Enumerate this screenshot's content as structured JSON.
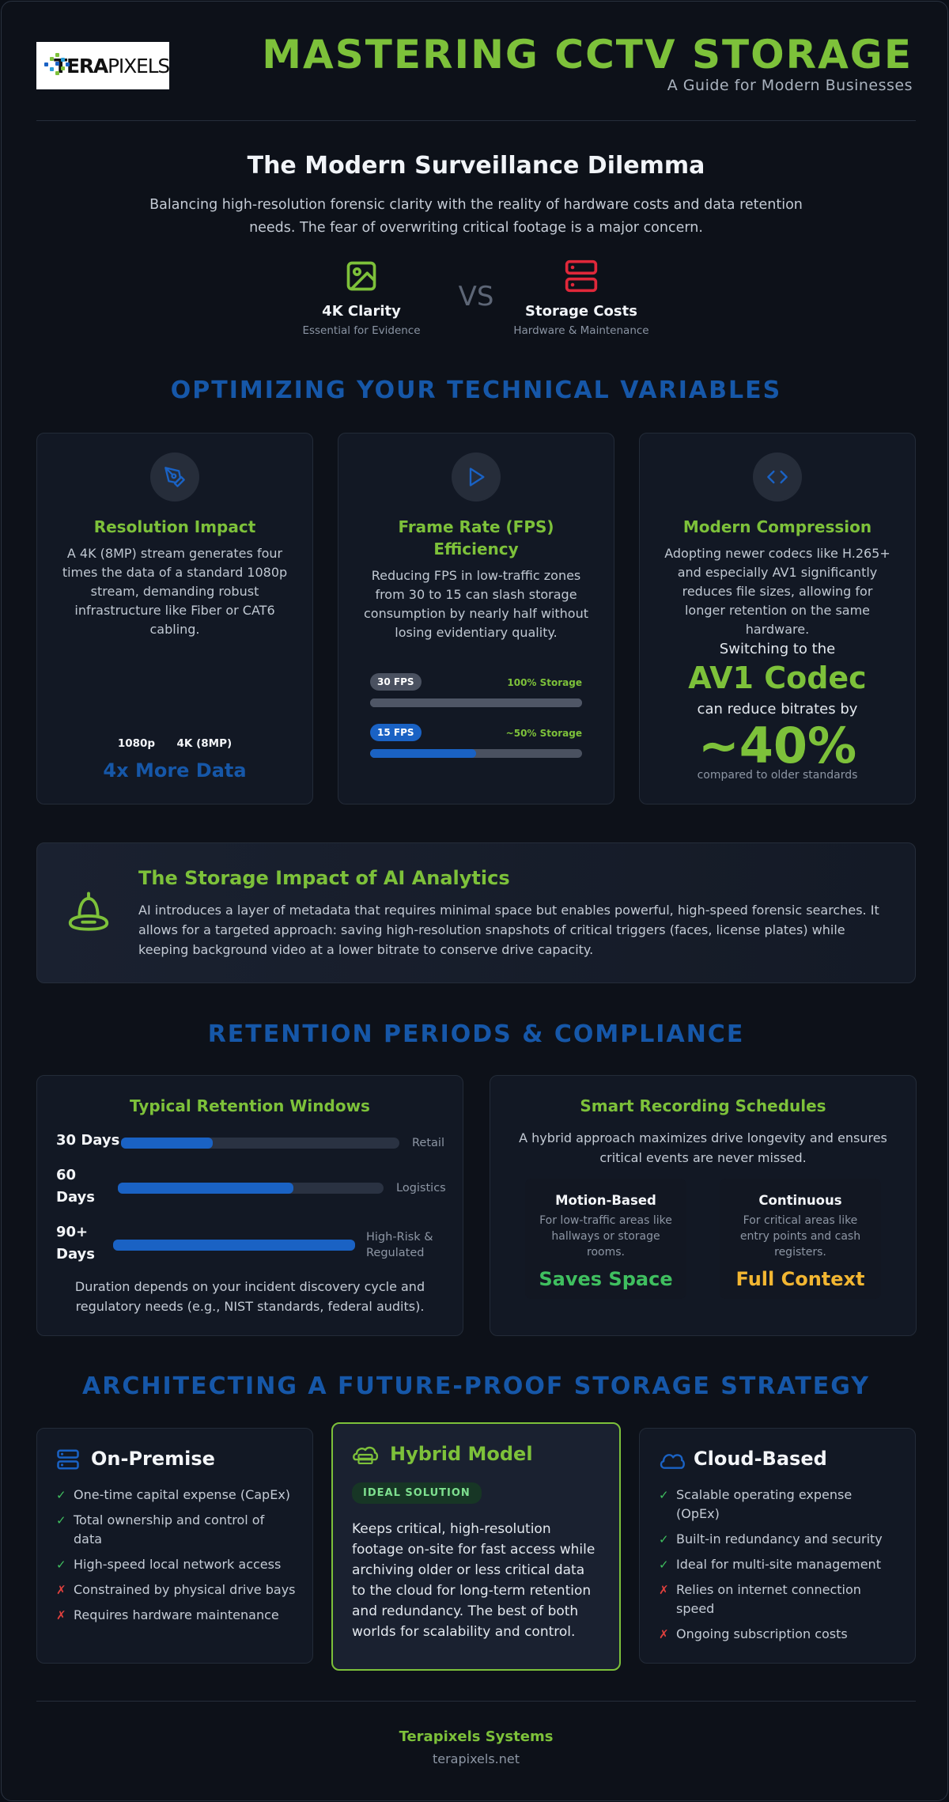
{
  "header": {
    "logo_text_bold": "TERA",
    "logo_text_light": "PIXELS",
    "title": "MASTERING CCTV STORAGE",
    "subtitle": "A Guide for Modern Businesses"
  },
  "dilemma": {
    "heading": "The Modern Surveillance Dilemma",
    "lead": "Balancing high-resolution forensic clarity with the reality of hardware costs and data retention needs. The fear of overwriting critical footage is a major concern.",
    "left": {
      "icon": "image-icon",
      "label": "4K Clarity",
      "sub": "Essential for Evidence"
    },
    "vs": "VS",
    "right": {
      "icon": "server-icon",
      "label": "Storage Costs",
      "sub": "Hardware & Maintenance"
    }
  },
  "technical": {
    "section_title": "OPTIMIZING YOUR TECHNICAL VARIABLES",
    "resolution": {
      "icon": "pen-tool-icon",
      "title": "Resolution Impact",
      "text": "A 4K (8MP) stream generates four times the data of a standard 1080p stream, demanding robust infrastructure like Fiber or CAT6 cabling.",
      "label_a": "1080p",
      "label_b": "4K (8MP)",
      "emphasis": "4x More Data"
    },
    "fps": {
      "icon": "play-icon",
      "title": "Frame Rate (FPS) Efficiency",
      "text": "Reducing FPS in low-traffic zones from 30 to 15 can slash storage consumption by nearly half without losing evidentiary quality.",
      "rows": [
        {
          "pill": "30 FPS",
          "storage": "100% Storage",
          "fill": 1.0
        },
        {
          "pill": "15 FPS",
          "storage": "~50% Storage",
          "fill": 0.5
        }
      ]
    },
    "compression": {
      "icon": "code-icon",
      "title": "Modern Compression",
      "text": "Adopting newer codecs like H.265+ and especially AV1 significantly reduces file sizes, allowing for longer retention on the same hardware.",
      "switch_text": "Switching to the",
      "codec": "AV1 Codec",
      "reduce_text": "can reduce bitrates by",
      "percent": "~40%",
      "note": "compared to older standards"
    }
  },
  "ai": {
    "icon": "bell-robot-icon",
    "title": "The Storage Impact of AI Analytics",
    "text": "AI introduces a layer of metadata that requires minimal space but enables powerful, high-speed forensic searches. It allows for a targeted approach: saving high-resolution snapshots of critical triggers (faces, license plates) while keeping background video at a lower bitrate to conserve drive capacity."
  },
  "retention": {
    "section_title": "RETENTION PERIODS & COMPLIANCE",
    "windows": {
      "title": "Typical Retention Windows",
      "rows": [
        {
          "label": "30 Days",
          "tag": "Retail",
          "fill": 0.33
        },
        {
          "label": "60 Days",
          "tag": "Logistics",
          "fill": 0.66
        },
        {
          "label": "90+ Days",
          "tag": "High-Risk & Regulated",
          "fill": 1.0
        }
      ],
      "note": "Duration depends on your incident discovery cycle and regulatory needs (e.g., NIST standards, federal audits)."
    },
    "schedules": {
      "title": "Smart Recording Schedules",
      "text": "A hybrid approach maximizes drive longevity and ensures critical events are never missed.",
      "motion": {
        "title": "Motion-Based",
        "text": "For low-traffic areas like hallways or storage rooms.",
        "big": "Saves Space"
      },
      "continuous": {
        "title": "Continuous",
        "text": "For critical areas like entry points and cash registers.",
        "big": "Full Context"
      }
    }
  },
  "strategy": {
    "section_title": "ARCHITECTING A FUTURE-PROOF STORAGE STRATEGY",
    "onprem": {
      "icon": "server-icon",
      "title": "On-Premise",
      "items": [
        {
          "mark": "✓",
          "text": "One-time capital expense (CapEx)"
        },
        {
          "mark": "✓",
          "text": "Total ownership and control of data"
        },
        {
          "mark": "✓",
          "text": "High-speed local network access"
        },
        {
          "mark": "✗",
          "text": "Constrained by physical drive bays"
        },
        {
          "mark": "✗",
          "text": "Requires hardware maintenance"
        }
      ]
    },
    "hybrid": {
      "icon": "hybrid-cloud-server-icon",
      "title": "Hybrid Model",
      "badge": "IDEAL SOLUTION",
      "text": "Keeps critical, high-resolution footage on-site for fast access while archiving older or less critical data to the cloud for long-term retention and redundancy. The best of both worlds for scalability and control."
    },
    "cloud": {
      "icon": "cloud-icon",
      "title": "Cloud-Based",
      "items": [
        {
          "mark": "✓",
          "text": "Scalable operating expense (OpEx)"
        },
        {
          "mark": "✓",
          "text": "Built-in redundancy and security"
        },
        {
          "mark": "✓",
          "text": "Ideal for multi-site management"
        },
        {
          "mark": "✗",
          "text": "Relies on internet connection speed"
        },
        {
          "mark": "✗",
          "text": "Ongoing subscription costs"
        }
      ]
    }
  },
  "footer": {
    "company": "Terapixels Systems",
    "url": "terapixels.net"
  },
  "colors": {
    "accent_green": "#7dc13a",
    "accent_blue": "#1657a8",
    "bar_blue": "#1a62c4",
    "danger_red": "#e0403d",
    "success_green": "#3fbf5f",
    "amber": "#f2b632"
  }
}
